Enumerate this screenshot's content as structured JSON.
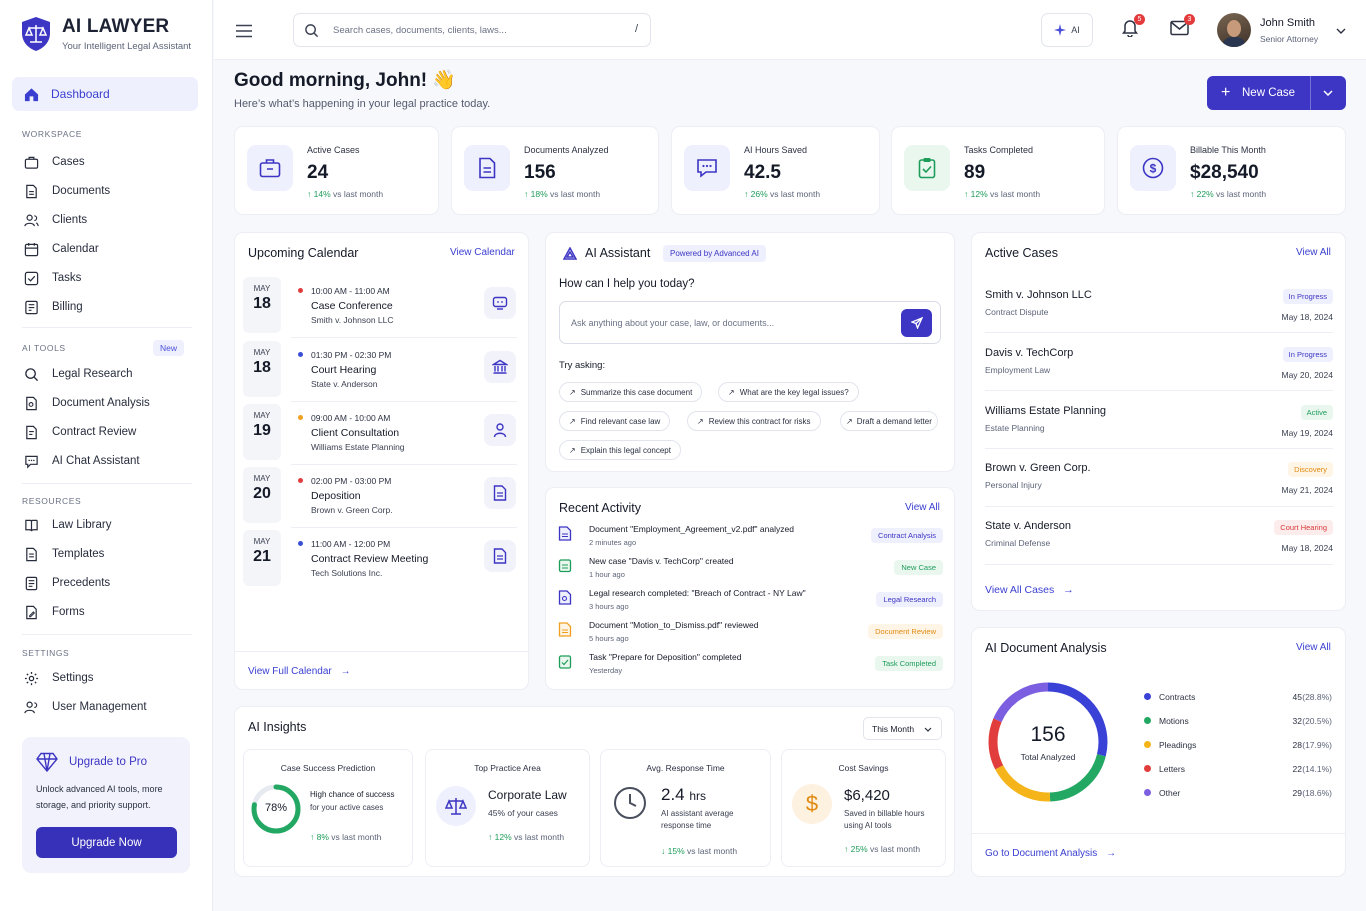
{
  "brand": {
    "title": "AI LAWYER",
    "subtitle": "Your Intelligent Legal Assistant"
  },
  "sidebar": {
    "dashboard": "Dashboard",
    "workspace_label": "WORKSPACE",
    "workspace": [
      "Cases",
      "Documents",
      "Clients",
      "Calendar",
      "Tasks",
      "Billing"
    ],
    "ai_tools_label": "AI TOOLS",
    "ai_tools_badge": "New",
    "ai_tools": [
      "Legal Research",
      "Document Analysis",
      "Contract Review",
      "AI Chat Assistant"
    ],
    "resources_label": "RESOURCES",
    "resources": [
      "Law Library",
      "Templates",
      "Precedents",
      "Forms"
    ],
    "settings_label": "SETTINGS",
    "settings": [
      "Settings",
      "User Management"
    ],
    "upgrade": {
      "title": "Upgrade to Pro",
      "text1": "Unlock advanced AI tools, more",
      "text2": "storage, and priority support.",
      "button": "Upgrade Now"
    }
  },
  "topbar": {
    "search_placeholder": "Search cases, documents, clients, laws...",
    "search_shortcut": "/",
    "ai_label": "AI",
    "notifications_count": "5",
    "messages_count": "3",
    "user_name": "John Smith",
    "user_role": "Senior Attorney"
  },
  "header": {
    "greeting": "Good morning, John! 👋",
    "subtitle": "Here’s what’s happening in your legal practice today.",
    "new_case": "New Case"
  },
  "stats": [
    {
      "label": "Active Cases",
      "value": "24",
      "delta": "14%",
      "suffix": "vs last month"
    },
    {
      "label": "Documents Analyzed",
      "value": "156",
      "delta": "18%",
      "suffix": "vs last month"
    },
    {
      "label": "AI Hours Saved",
      "value": "42.5",
      "delta": "26%",
      "suffix": "vs last month"
    },
    {
      "label": "Tasks Completed",
      "value": "89",
      "delta": "12%",
      "suffix": "vs last month"
    },
    {
      "label": "Billable This Month",
      "value": "$28,540",
      "delta": "22%",
      "suffix": "vs last month"
    }
  ],
  "calendar": {
    "title": "Upcoming Calendar",
    "link": "View Calendar",
    "footer": "View Full Calendar",
    "events": [
      {
        "month": "MAY",
        "day": "18",
        "time": "10:00 AM - 11:00 AM",
        "title": "Case Conference",
        "sub": "Smith v. Johnson LLC",
        "dot": "#e03e3e"
      },
      {
        "month": "MAY",
        "day": "18",
        "time": "01:30 PM - 02:30 PM",
        "title": "Court Hearing",
        "sub": "State v. Anderson",
        "dot": "#3a4fd6"
      },
      {
        "month": "MAY",
        "day": "19",
        "time": "09:00 AM - 10:00 AM",
        "title": "Client Consultation",
        "sub": "Williams Estate Planning",
        "dot": "#f0a020"
      },
      {
        "month": "MAY",
        "day": "20",
        "time": "02:00 PM - 03:00 PM",
        "title": "Deposition",
        "sub": "Brown v. Green Corp.",
        "dot": "#e03e3e"
      },
      {
        "month": "MAY",
        "day": "21",
        "time": "11:00 AM - 12:00 PM",
        "title": "Contract Review Meeting",
        "sub": "Tech Solutions Inc.",
        "dot": "#3a4fd6"
      }
    ]
  },
  "assistant": {
    "title": "AI Assistant",
    "badge": "Powered by Advanced AI",
    "question": "How can I help you today?",
    "placeholder": "Ask anything about your case, law, or documents...",
    "try_label": "Try asking:",
    "chips": [
      "Summarize this case document",
      "What are the key legal issues?",
      "Find relevant case law",
      "Review this contract for risks",
      "Draft a demand letter",
      "Explain this legal concept"
    ]
  },
  "activity": {
    "title": "Recent Activity",
    "link": "View All",
    "items": [
      {
        "text": "Document \"Employment_Agreement_v2.pdf\" analyzed",
        "time": "2 minutes ago",
        "tag": "Contract Analysis"
      },
      {
        "text": "New case \"Davis v. TechCorp\" created",
        "time": "1 hour ago",
        "tag": "New Case"
      },
      {
        "text": "Legal research completed: \"Breach of Contract - NY Law\"",
        "time": "3 hours ago",
        "tag": "Legal Research"
      },
      {
        "text": "Document \"Motion_to_Dismiss.pdf\" reviewed",
        "time": "5 hours ago",
        "tag": "Document Review"
      },
      {
        "text": "Task \"Prepare for Deposition\" completed",
        "time": "Yesterday",
        "tag": "Task Completed"
      }
    ]
  },
  "active_cases": {
    "title": "Active Cases",
    "link": "View All",
    "footer": "View All Cases",
    "items": [
      {
        "name": "Smith v. Johnson LLC",
        "type": "Contract Dispute",
        "status": "In Progress",
        "date": "May 18, 2024"
      },
      {
        "name": "Davis v. TechCorp",
        "type": "Employment Law",
        "status": "In Progress",
        "date": "May 20, 2024"
      },
      {
        "name": "Williams Estate Planning",
        "type": "Estate Planning",
        "status": "Active",
        "date": "May 19, 2024"
      },
      {
        "name": "Brown v. Green Corp.",
        "type": "Personal Injury",
        "status": "Discovery",
        "date": "May 21, 2024"
      },
      {
        "name": "State v. Anderson",
        "type": "Criminal Defense",
        "status": "Court Hearing",
        "date": "May 18, 2024"
      }
    ]
  },
  "doc_analysis": {
    "title": "AI Document Analysis",
    "link": "View All",
    "total": "156",
    "total_label": "Total Analyzed",
    "footer": "Go to Document Analysis",
    "items": [
      {
        "name": "Contracts",
        "count": "45",
        "pct": "(28.8%)",
        "color": "#3a41d6"
      },
      {
        "name": "Motions",
        "count": "32",
        "pct": "(20.5%)",
        "color": "#22a862"
      },
      {
        "name": "Pleadings",
        "count": "28",
        "pct": "(17.9%)",
        "color": "#f4b41a"
      },
      {
        "name": "Letters",
        "count": "22",
        "pct": "(14.1%)",
        "color": "#e23d3d"
      },
      {
        "name": "Other",
        "count": "29",
        "pct": "(18.6%)",
        "color": "#7c5fe0"
      }
    ]
  },
  "insights": {
    "title": "AI Insights",
    "period": "This Month",
    "success": {
      "title": "Case Success Prediction",
      "value": "78%",
      "percent": 78,
      "text1": "High chance of success",
      "text2": "for your active cases",
      "delta": "8%",
      "suffix": "vs last month"
    },
    "practice": {
      "title": "Top Practice Area",
      "name": "Corporate Law",
      "text": "45% of your cases",
      "delta": "12%",
      "suffix": "vs last month"
    },
    "response": {
      "title": "Avg. Response Time",
      "value": "2.4",
      "unit": "hrs",
      "text1": "AI assistant average",
      "text2": "response time",
      "delta": "15%",
      "suffix": "vs last month"
    },
    "savings": {
      "title": "Cost Savings",
      "value": "$6,420",
      "text1": "Saved in billable hours",
      "text2": "using AI tools",
      "delta": "25%",
      "suffix": "vs last month"
    }
  }
}
